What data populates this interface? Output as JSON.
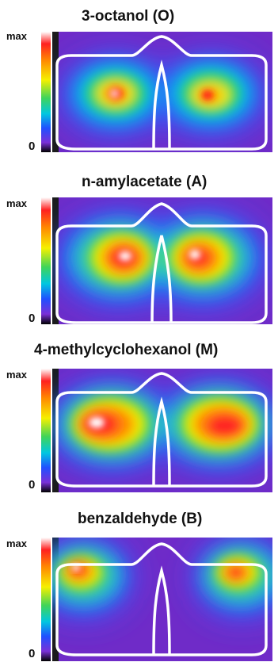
{
  "panels": [
    {
      "title": "3-octanol (O)",
      "max_label": "max",
      "min_label": "0"
    },
    {
      "title": "n-amylacetate (A)",
      "max_label": "max",
      "min_label": "0"
    },
    {
      "title": "4-methylcyclohexanol (M)",
      "max_label": "max",
      "min_label": "0"
    },
    {
      "title": "benzaldehyde (B)",
      "max_label": "max",
      "min_label": "0"
    }
  ],
  "colorscale": [
    "#000000",
    "#7a30d8",
    "#2050ff",
    "#00c7e0",
    "#3fd45a",
    "#f5f000",
    "#ff8a00",
    "#ff2020",
    "#ffffff"
  ],
  "outline_color": "#ffffff"
}
